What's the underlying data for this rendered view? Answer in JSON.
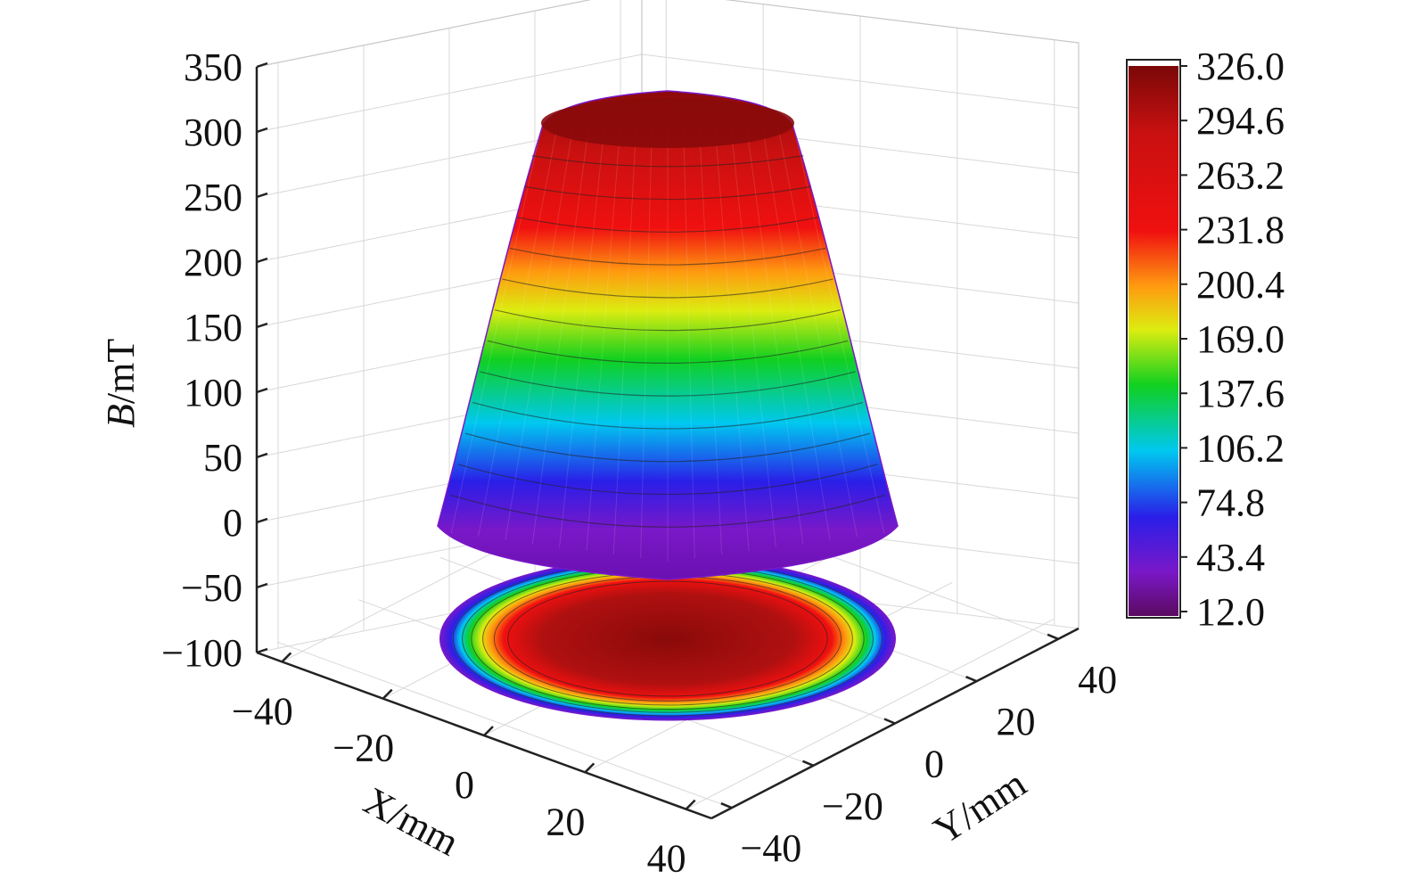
{
  "chart_data": {
    "type": "surface3d",
    "z_axis": {
      "label_italic": "B",
      "label_rest": "/mT",
      "range": [
        -100,
        350
      ],
      "ticks": [
        "350",
        "300",
        "250",
        "200",
        "150",
        "100",
        "50",
        "0",
        "−50",
        "−100"
      ],
      "tick_values": [
        350,
        300,
        250,
        200,
        150,
        100,
        50,
        0,
        -50,
        -100
      ]
    },
    "x_axis": {
      "label": "X/mm",
      "range": [
        -45,
        45
      ],
      "ticks": [
        "−40",
        "−20",
        "0",
        "20",
        "40"
      ],
      "tick_values": [
        -40,
        -20,
        0,
        20,
        40
      ]
    },
    "y_axis": {
      "label": "Y/mm",
      "range": [
        -45,
        45
      ],
      "ticks": [
        "−40",
        "−20",
        "0",
        "20",
        "40"
      ],
      "tick_values": [
        -40,
        -20,
        0,
        20,
        40
      ]
    },
    "colorbar": {
      "min": 12.0,
      "max": 326.0,
      "labels": [
        "326.0",
        "294.6",
        "263.2",
        "231.8",
        "200.4",
        "169.0",
        "137.6",
        "106.2",
        "74.8",
        "43.4",
        "12.0"
      ],
      "colormap": [
        "#5b0a60",
        "#7a18c8",
        "#2a1ee8",
        "#00c8f0",
        "#10d020",
        "#dcec10",
        "#ff9a10",
        "#f01010",
        "#c81010",
        "#7a0808"
      ]
    },
    "surface": {
      "radius_mm": 35,
      "peak_B": 326,
      "base_B": 12,
      "projected_contour_at_B": -100
    },
    "grid": true
  }
}
